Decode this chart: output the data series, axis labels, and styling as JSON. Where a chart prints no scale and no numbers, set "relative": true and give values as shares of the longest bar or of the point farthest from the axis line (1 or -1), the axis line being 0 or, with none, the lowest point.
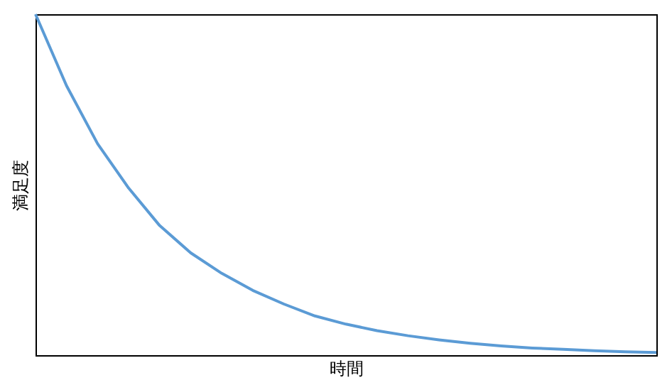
{
  "chart_data": {
    "type": "line",
    "relative": true,
    "xlabel": "時間",
    "ylabel": "満足度",
    "categories": [
      null,
      null,
      null,
      null,
      null,
      null,
      null,
      null,
      null,
      null,
      null,
      null,
      null,
      null,
      null,
      null,
      null,
      null,
      null,
      null,
      null
    ],
    "series": [
      {
        "color": "#5b9bd5",
        "values": [
          1,
          0.79,
          0.62,
          0.49,
          0.38,
          0.3,
          0.24,
          0.19,
          0.15,
          0.115,
          0.091,
          0.072,
          0.057,
          0.045,
          0.035,
          0.027,
          0.021,
          0.017,
          0.013,
          0.01,
          0.008
        ]
      }
    ],
    "grid": false,
    "marker": "none",
    "line_style": "solid",
    "tick_labels": false
  }
}
